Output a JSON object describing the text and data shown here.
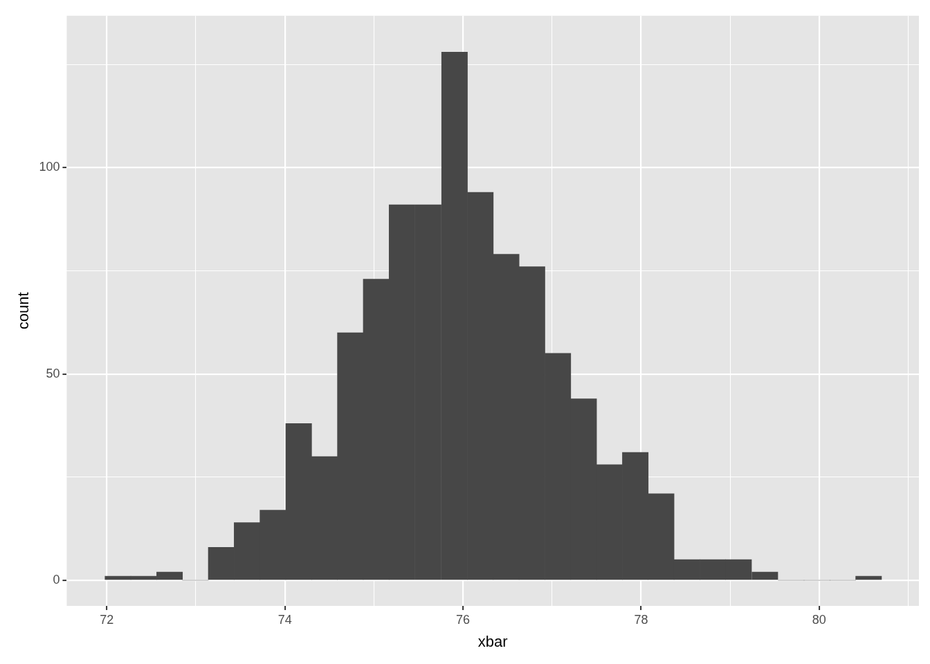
{
  "chart_data": {
    "type": "histogram",
    "xlabel": "xbar",
    "ylabel": "count",
    "color": "#474747",
    "bins": [
      71.98,
      72.27,
      72.56,
      72.85,
      73.14,
      73.43,
      73.72,
      74.01,
      74.3,
      74.59,
      74.88,
      75.17,
      75.46,
      75.76,
      76.05,
      76.34,
      76.63,
      76.92,
      77.21,
      77.5,
      77.79,
      78.08,
      78.37,
      78.66,
      78.95,
      79.24,
      79.54,
      79.83,
      80.12,
      80.41,
      80.7
    ],
    "values": [
      1,
      1,
      2,
      0,
      8,
      14,
      17,
      38,
      30,
      60,
      73,
      91,
      91,
      128,
      94,
      79,
      76,
      55,
      44,
      28,
      31,
      21,
      5,
      5,
      5,
      2,
      0,
      0,
      0,
      1
    ],
    "xlim": [
      71.55,
      81.12
    ],
    "xticks": [
      72,
      {
        "value": 73,
        "label": null
      },
      74,
      {
        "value": 75,
        "label": null
      },
      76,
      {
        "value": 77,
        "label": null
      },
      78,
      {
        "value": 79,
        "label": null
      },
      80,
      {
        "value": 81,
        "label": null
      }
    ],
    "ylim": [
      -6.2,
      136.8
    ],
    "yticks": [
      0,
      {
        "value": 25,
        "label": null
      },
      50,
      {
        "value": 75,
        "label": null
      },
      100,
      {
        "value": 125,
        "label": null
      }
    ],
    "grid": true,
    "legend": false
  }
}
